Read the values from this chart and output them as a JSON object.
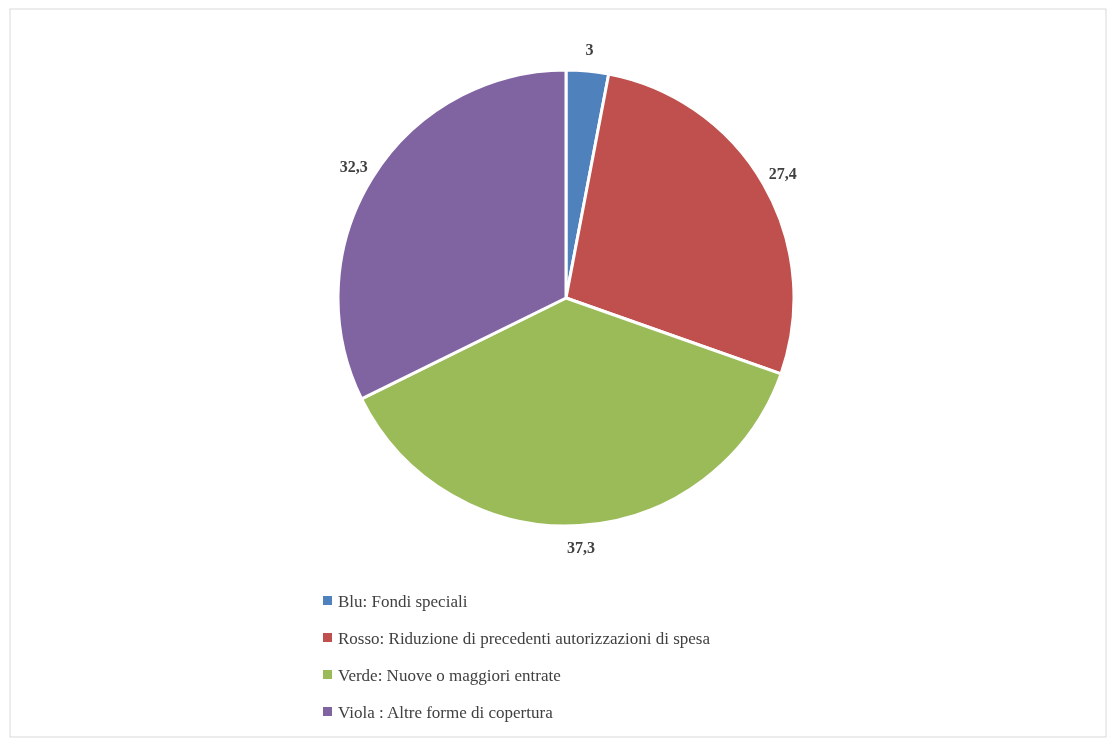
{
  "chart_data": {
    "type": "pie",
    "categories": [
      "Blu: Fondi speciali",
      "Rosso: Riduzione di precedenti autorizzazioni di spesa",
      "Verde: Nuove o maggiori entrate",
      "Viola : Altre forme di copertura"
    ],
    "values": [
      3,
      27.4,
      37.3,
      32.3
    ],
    "colors": [
      "#4f81bd",
      "#c0504d",
      "#9bbb59",
      "#8064a2"
    ],
    "value_labels": [
      "3",
      "27,4",
      "37,3",
      "32,3"
    ],
    "legend": "bottom"
  }
}
